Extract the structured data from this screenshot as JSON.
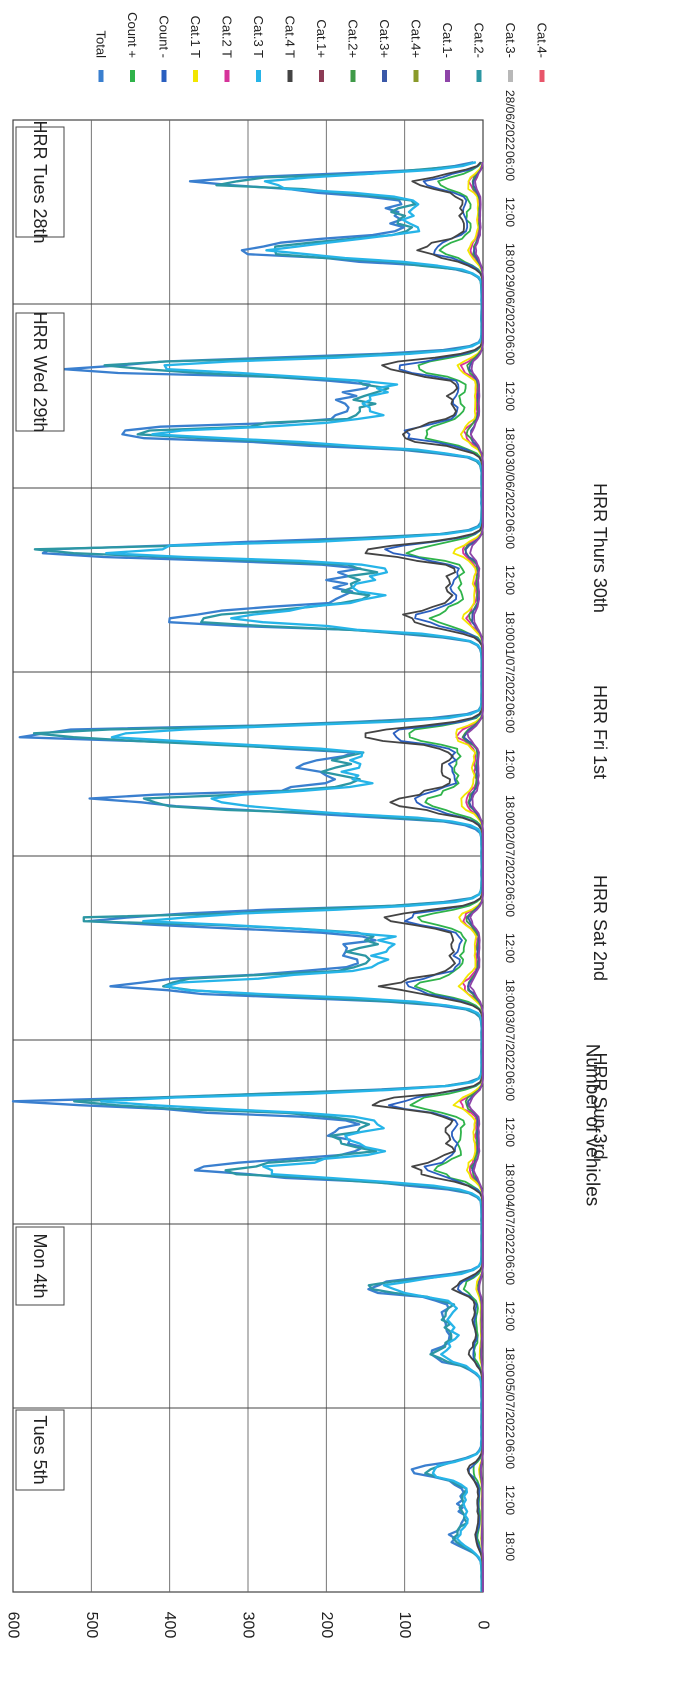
{
  "chart_data": {
    "type": "line",
    "title": "",
    "xlabel": "",
    "ylabel": "Number of vehicles",
    "ylim": [
      0,
      600
    ],
    "yticks": [
      "0",
      "100",
      "200",
      "300",
      "400",
      "500",
      "600"
    ],
    "xlim": [
      "28/06/2022 00:00",
      "06/07/2022 00:00"
    ],
    "date_labels": [
      "28/06/2022",
      "29/06/2022",
      "30/06/2022",
      "01/07/2022",
      "02/07/2022",
      "03/07/2022",
      "04/07/2022",
      "05/07/2022"
    ],
    "hour_labels": [
      "06:00",
      "12:00",
      "18:00"
    ],
    "grid": true,
    "legend_position": "right",
    "legend": [
      {
        "label": "Total",
        "color": "#3a7fcf"
      },
      {
        "label": "Count +",
        "color": "#2fb34a"
      },
      {
        "label": "Count -",
        "color": "#2a5fc0"
      },
      {
        "label": "Cat.1 T",
        "color": "#f2e600"
      },
      {
        "label": "Cat.2 T",
        "color": "#d6339a"
      },
      {
        "label": "Cat.3 T",
        "color": "#26b4e8"
      },
      {
        "label": "Cat.4 T",
        "color": "#444444"
      },
      {
        "label": "Cat.1+",
        "color": "#8c3b55"
      },
      {
        "label": "Cat.2+",
        "color": "#3f9a48"
      },
      {
        "label": "Cat.3+",
        "color": "#3a58a8"
      },
      {
        "label": "Cat.4+",
        "color": "#8a9a2a"
      },
      {
        "label": "Cat.1-",
        "color": "#8e44a8"
      },
      {
        "label": "Cat.2-",
        "color": "#2c97a3"
      },
      {
        "label": "Cat.3-",
        "color": "#b8b8b8"
      },
      {
        "label": "Cat.4-",
        "color": "#e8556a"
      }
    ],
    "annotations": [
      {
        "text": "HRR Tues 28th",
        "region": "top"
      },
      {
        "text": "HRR Wed 29th",
        "region": "top"
      },
      {
        "text": "HRR Thurs 30th",
        "region": "bottom"
      },
      {
        "text": "HRR Fri 1st",
        "region": "bottom"
      },
      {
        "text": "HRR Sat 2nd",
        "region": "bottom"
      },
      {
        "text": "HRR Sun 3rd",
        "region": "bottom"
      },
      {
        "text": "Mon 4th",
        "region": "top"
      },
      {
        "text": "Tues 5th",
        "region": "top"
      }
    ],
    "daily_peaks": [
      {
        "date": "28/06/2022",
        "am_peak": 340,
        "pm_peak": 300
      },
      {
        "date": "29/06/2022",
        "am_peak": 500,
        "pm_peak": 450
      },
      {
        "date": "30/06/2022",
        "am_peak": 555,
        "pm_peak": 385
      },
      {
        "date": "01/07/2022",
        "am_peak": 610,
        "pm_peak": 445
      },
      {
        "date": "02/07/2022",
        "am_peak": 495,
        "pm_peak": 480
      },
      {
        "date": "03/07/2022",
        "am_peak": 555,
        "pm_peak": 330
      },
      {
        "date": "04/07/2022",
        "am_peak": 145,
        "pm_peak": 60
      },
      {
        "date": "05/07/2022",
        "am_peak": 80,
        "pm_peak": 35
      }
    ]
  }
}
